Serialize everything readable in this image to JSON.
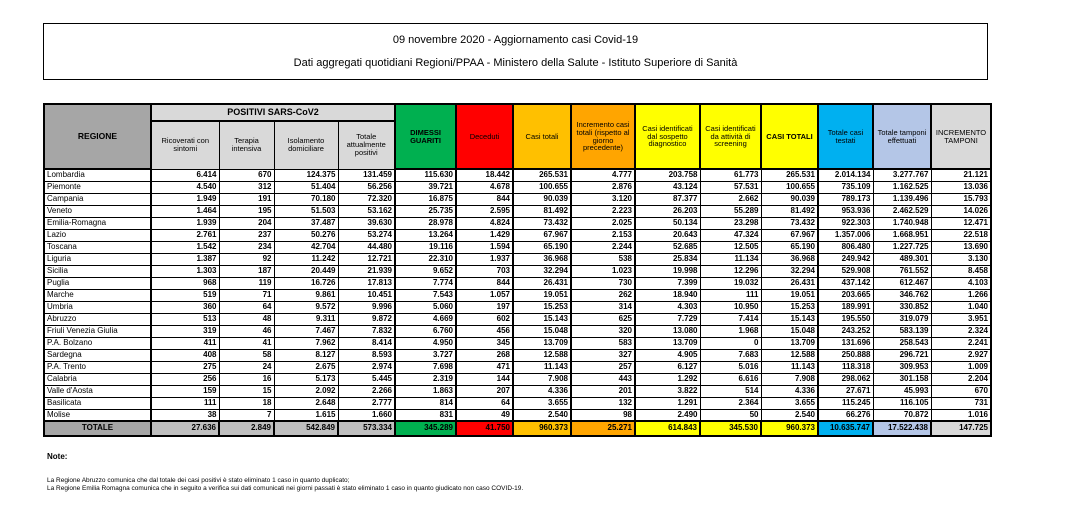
{
  "title_box": {
    "line1": "09 novembre 2020 - Aggiornamento casi Covid-19",
    "line2": "Dati aggregati quotidiani Regioni/PPAA - Ministero della Salute - Istituto Superiore di Sanità"
  },
  "table": {
    "group_header": "POSITIVI SARS-CoV2",
    "columns": [
      {
        "label": "REGIONE"
      },
      {
        "label": "Ricoverati con sintomi"
      },
      {
        "label": "Terapia intensiva"
      },
      {
        "label": "Isolamento domiciliare"
      },
      {
        "label": "Totale attualmente positivi"
      },
      {
        "label": "DIMESSI GUARITI"
      },
      {
        "label": "Deceduti"
      },
      {
        "label": "Casi totali"
      },
      {
        "label": "Incremento casi totali (rispetto al giorno precedente)"
      },
      {
        "label": "Casi identificati dal sospetto diagnostico"
      },
      {
        "label": "Casi identificati da attività di screening"
      },
      {
        "label": "CASI TOTALI"
      },
      {
        "label": "Totale casi testati"
      },
      {
        "label": "Totale tamponi effettuati"
      },
      {
        "label": "INCREMENTO TAMPONI"
      }
    ],
    "rows": [
      {
        "region": "Lombardia",
        "values": [
          "6.414",
          "670",
          "124.375",
          "131.459",
          "115.630",
          "18.442",
          "265.531",
          "4.777",
          "203.758",
          "61.773",
          "265.531",
          "2.014.134",
          "3.277.767",
          "21.121"
        ]
      },
      {
        "region": "Piemonte",
        "values": [
          "4.540",
          "312",
          "51.404",
          "56.256",
          "39.721",
          "4.678",
          "100.655",
          "2.876",
          "43.124",
          "57.531",
          "100.655",
          "735.109",
          "1.162.525",
          "13.036"
        ]
      },
      {
        "region": "Campania",
        "values": [
          "1.949",
          "191",
          "70.180",
          "72.320",
          "16.875",
          "844",
          "90.039",
          "3.120",
          "87.377",
          "2.662",
          "90.039",
          "789.173",
          "1.139.496",
          "15.793"
        ]
      },
      {
        "region": "Veneto",
        "values": [
          "1.464",
          "195",
          "51.503",
          "53.162",
          "25.735",
          "2.595",
          "81.492",
          "2.223",
          "26.203",
          "55.289",
          "81.492",
          "953.936",
          "2.462.529",
          "14.026"
        ]
      },
      {
        "region": "Emilia-Romagna",
        "values": [
          "1.939",
          "204",
          "37.487",
          "39.630",
          "28.978",
          "4.824",
          "73.432",
          "2.025",
          "50.134",
          "23.298",
          "73.432",
          "922.303",
          "1.740.948",
          "12.471"
        ]
      },
      {
        "region": "Lazio",
        "values": [
          "2.761",
          "237",
          "50.276",
          "53.274",
          "13.264",
          "1.429",
          "67.967",
          "2.153",
          "20.643",
          "47.324",
          "67.967",
          "1.357.006",
          "1.668.951",
          "22.518"
        ]
      },
      {
        "region": "Toscana",
        "values": [
          "1.542",
          "234",
          "42.704",
          "44.480",
          "19.116",
          "1.594",
          "65.190",
          "2.244",
          "52.685",
          "12.505",
          "65.190",
          "806.480",
          "1.227.725",
          "13.690"
        ]
      },
      {
        "region": "Liguria",
        "values": [
          "1.387",
          "92",
          "11.242",
          "12.721",
          "22.310",
          "1.937",
          "36.968",
          "538",
          "25.834",
          "11.134",
          "36.968",
          "249.942",
          "489.301",
          "3.130"
        ]
      },
      {
        "region": "Sicilia",
        "values": [
          "1.303",
          "187",
          "20.449",
          "21.939",
          "9.652",
          "703",
          "32.294",
          "1.023",
          "19.998",
          "12.296",
          "32.294",
          "529.908",
          "761.552",
          "8.458"
        ]
      },
      {
        "region": "Puglia",
        "values": [
          "968",
          "119",
          "16.726",
          "17.813",
          "7.774",
          "844",
          "26.431",
          "730",
          "7.399",
          "19.032",
          "26.431",
          "437.142",
          "612.467",
          "4.103"
        ]
      },
      {
        "region": "Marche",
        "values": [
          "519",
          "71",
          "9.861",
          "10.451",
          "7.543",
          "1.057",
          "19.051",
          "262",
          "18.940",
          "111",
          "19.051",
          "203.665",
          "346.762",
          "1.266"
        ]
      },
      {
        "region": "Umbria",
        "values": [
          "360",
          "64",
          "9.572",
          "9.996",
          "5.060",
          "197",
          "15.253",
          "314",
          "4.303",
          "10.950",
          "15.253",
          "189.991",
          "330.852",
          "1.040"
        ]
      },
      {
        "region": "Abruzzo",
        "values": [
          "513",
          "48",
          "9.311",
          "9.872",
          "4.669",
          "602",
          "15.143",
          "625",
          "7.729",
          "7.414",
          "15.143",
          "195.550",
          "319.079",
          "3.951"
        ]
      },
      {
        "region": "Friuli Venezia Giulia",
        "values": [
          "319",
          "46",
          "7.467",
          "7.832",
          "6.760",
          "456",
          "15.048",
          "320",
          "13.080",
          "1.968",
          "15.048",
          "243.252",
          "583.139",
          "2.324"
        ]
      },
      {
        "region": "P.A. Bolzano",
        "values": [
          "411",
          "41",
          "7.962",
          "8.414",
          "4.950",
          "345",
          "13.709",
          "583",
          "13.709",
          "0",
          "13.709",
          "131.696",
          "258.543",
          "2.241"
        ]
      },
      {
        "region": "Sardegna",
        "values": [
          "408",
          "58",
          "8.127",
          "8.593",
          "3.727",
          "268",
          "12.588",
          "327",
          "4.905",
          "7.683",
          "12.588",
          "250.888",
          "296.721",
          "2.927"
        ]
      },
      {
        "region": "P.A. Trento",
        "values": [
          "275",
          "24",
          "2.675",
          "2.974",
          "7.698",
          "471",
          "11.143",
          "257",
          "6.127",
          "5.016",
          "11.143",
          "118.318",
          "309.953",
          "1.009"
        ]
      },
      {
        "region": "Calabria",
        "values": [
          "256",
          "16",
          "5.173",
          "5.445",
          "2.319",
          "144",
          "7.908",
          "443",
          "1.292",
          "6.616",
          "7.908",
          "298.062",
          "301.158",
          "2.204"
        ]
      },
      {
        "region": "Valle d'Aosta",
        "values": [
          "159",
          "15",
          "2.092",
          "2.266",
          "1.863",
          "207",
          "4.336",
          "201",
          "3.822",
          "514",
          "4.336",
          "27.671",
          "45.993",
          "670"
        ]
      },
      {
        "region": "Basilicata",
        "values": [
          "111",
          "18",
          "2.648",
          "2.777",
          "814",
          "64",
          "3.655",
          "132",
          "1.291",
          "2.364",
          "3.655",
          "115.245",
          "116.105",
          "731"
        ]
      },
      {
        "region": "Molise",
        "values": [
          "38",
          "7",
          "1.615",
          "1.660",
          "831",
          "49",
          "2.540",
          "98",
          "2.490",
          "50",
          "2.540",
          "66.276",
          "70.872",
          "1.016"
        ]
      }
    ],
    "totale": {
      "label": "TOTALE",
      "values": [
        "27.636",
        "2.849",
        "542.849",
        "573.334",
        "345.289",
        "41.750",
        "960.373",
        "25.271",
        "614.843",
        "345.530",
        "960.373",
        "10.635.747",
        "17.522.438",
        "147.725"
      ]
    }
  },
  "notes": {
    "heading": "Note:",
    "lines": [
      "La Regione Abruzzo comunica che dal totale dei casi positivi è stato eliminato 1 caso in quanto duplicato;",
      "La Regione Emilia Romagna comunica che in seguito a verifica sui dati comunicati nei giorni passati è stato eliminato 1 caso in quanto giudicato non caso COVID-19."
    ]
  },
  "colors": {
    "gray_header": "#A6A6A6",
    "gray_light": "#D9D9D9",
    "gray_totale": "#BFBFBF",
    "green": "#00B050",
    "red": "#FF0000",
    "gold": "#FFC000",
    "orange": "#FFA500",
    "yellow": "#FFFF00",
    "cyan": "#00B0F0",
    "periwinkle": "#B4C6E7"
  }
}
